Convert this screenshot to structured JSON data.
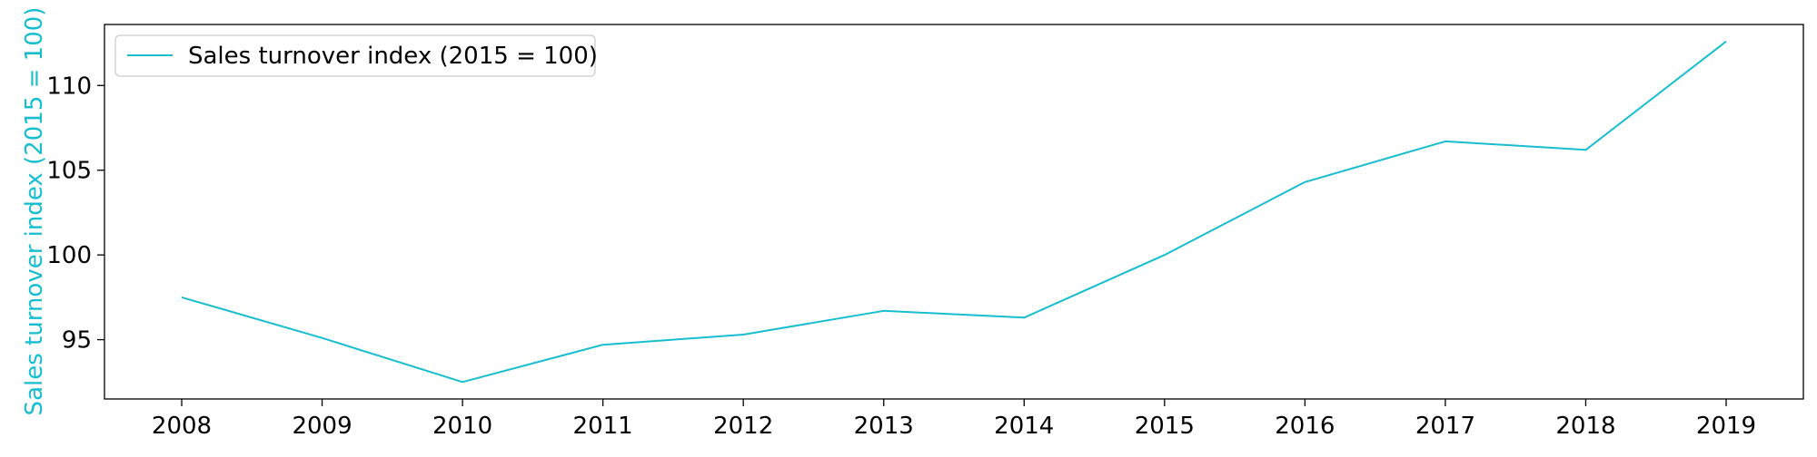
{
  "chart_data": {
    "type": "line",
    "title": "",
    "xlabel": "",
    "ylabel": "Sales turnover index (2015 = 100)",
    "x": [
      "2008",
      "2009",
      "2010",
      "2011",
      "2012",
      "2013",
      "2014",
      "2015",
      "2016",
      "2017",
      "2018",
      "2019"
    ],
    "series": [
      {
        "name": "Sales turnover index (2015 = 100)",
        "color": "#17becf",
        "values": [
          97.5,
          95.1,
          92.5,
          94.7,
          95.3,
          96.7,
          96.3,
          100.0,
          104.3,
          106.7,
          106.2,
          112.6
        ]
      }
    ],
    "ylim": [
      91.5,
      113.6
    ],
    "yticks": [
      95,
      100,
      105,
      110
    ],
    "grid": false,
    "legend": "top-left"
  },
  "colors": {
    "series": "#17becf",
    "axis": "#000000",
    "legend_border": "#cccccc"
  }
}
